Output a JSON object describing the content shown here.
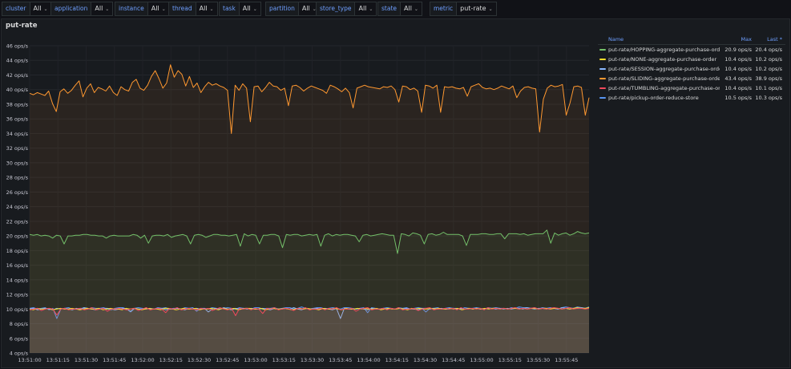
{
  "variables": [
    {
      "name": "cluster",
      "value": "All"
    },
    {
      "name": "application",
      "value": "All"
    },
    {
      "name": "instance",
      "value": "All"
    },
    {
      "name": "thread",
      "value": "All"
    },
    {
      "name": "task",
      "value": "All"
    },
    {
      "name": "partition",
      "value": "All"
    },
    {
      "name": "store_type",
      "value": "All"
    },
    {
      "name": "state",
      "value": "All"
    },
    {
      "name": "metric",
      "value": "put-rate"
    }
  ],
  "panel": {
    "title": "put-rate"
  },
  "legend": {
    "headers": {
      "name": "Name",
      "max": "Max",
      "last": "Last *"
    },
    "rows": [
      {
        "name": "put-rate/HOPPING-aggregate-purchase-order",
        "max": "20.9 ops/s",
        "last": "20.4 ops/s",
        "color": "#73bf69"
      },
      {
        "name": "put-rate/NONE-aggregate-purchase-order",
        "max": "10.4 ops/s",
        "last": "10.2 ops/s",
        "color": "#fade2a"
      },
      {
        "name": "put-rate/SESSION-aggregate-purchase-order",
        "max": "10.4 ops/s",
        "last": "10.2 ops/s",
        "color": "#8ab8ff"
      },
      {
        "name": "put-rate/SLIDING-aggregate-purchase-order",
        "max": "43.4 ops/s",
        "last": "38.9 ops/s",
        "color": "#ff9830"
      },
      {
        "name": "put-rate/TUMBLING-aggregate-purchase-order",
        "max": "10.4 ops/s",
        "last": "10.1 ops/s",
        "color": "#f2495c"
      },
      {
        "name": "put-rate/pickup-order-reduce-store",
        "max": "10.5 ops/s",
        "last": "10.3 ops/s",
        "color": "#5794f2"
      }
    ]
  },
  "chart_data": {
    "type": "line",
    "ylim": [
      4,
      46
    ],
    "y_ticks": [
      "4 ops/s",
      "6 ops/s",
      "8 ops/s",
      "10 ops/s",
      "12 ops/s",
      "14 ops/s",
      "16 ops/s",
      "18 ops/s",
      "20 ops/s",
      "22 ops/s",
      "24 ops/s",
      "26 ops/s",
      "28 ops/s",
      "30 ops/s",
      "32 ops/s",
      "34 ops/s",
      "36 ops/s",
      "38 ops/s",
      "40 ops/s",
      "42 ops/s",
      "44 ops/s",
      "46 ops/s"
    ],
    "x_ticks": [
      "13:51:00",
      "13:51:15",
      "13:51:30",
      "13:51:45",
      "13:52:00",
      "13:52:15",
      "13:52:30",
      "13:52:45",
      "13:53:00",
      "13:53:15",
      "13:53:30",
      "13:53:45",
      "13:54:00",
      "13:54:15",
      "13:54:30",
      "13:54:45",
      "13:55:00",
      "13:55:15",
      "13:55:30",
      "13:55:45"
    ],
    "x_start_seconds": 0,
    "x_end_seconds": 297,
    "series": [
      {
        "name": "put-rate/SLIDING-aggregate-purchase-order",
        "color": "#ff9830",
        "values": [
          39.5,
          39.3,
          39.6,
          39.4,
          39.2,
          39.8,
          38.1,
          37,
          39.7,
          40.1,
          39.5,
          39.9,
          40.6,
          41.2,
          39,
          40.2,
          40.8,
          39.6,
          40.3,
          40.1,
          39.8,
          40.5,
          39.6,
          39.2,
          40.4,
          40,
          39.8,
          41,
          41.4,
          40.2,
          39.9,
          40.6,
          41.8,
          42.6,
          41.5,
          40.2,
          40.9,
          43.4,
          41.7,
          42.6,
          42.1,
          40.5,
          41.8,
          40.3,
          40.9,
          39.6,
          40.4,
          41,
          40.6,
          40.8,
          40.5,
          40.3,
          39.9,
          34,
          40.6,
          39.9,
          40.8,
          40.2,
          35.6,
          40.4,
          40.5,
          39.7,
          40.3,
          41,
          40.5,
          40.4,
          39.9,
          40.2,
          37.8,
          40.5,
          40.6,
          40.3,
          39.8,
          40.2,
          40.5,
          40.3,
          40.1,
          39.9,
          39.5,
          40.6,
          40.4,
          40.1,
          39.7,
          40.2,
          39.6,
          37.5,
          40.2,
          40.4,
          40.6,
          40.4,
          40.3,
          40.2,
          40.1,
          40.4,
          40.3,
          40.5,
          40,
          38.3,
          40.5,
          40.4,
          40,
          40.2,
          39.8,
          36.9,
          40.6,
          40.5,
          40.2,
          40.6,
          36.9,
          40.4,
          40.3,
          40.4,
          40.2,
          40.1,
          40.3,
          39.1,
          40.4,
          40.6,
          40.8,
          40.3,
          40.1,
          40.2,
          40,
          40.2,
          40.5,
          40.3,
          40.1,
          40.5,
          38.9,
          39.8,
          40.3,
          40.4,
          40.2,
          40.1,
          34.2,
          38.7,
          40.2,
          40.6,
          40.4,
          40.5,
          40.7,
          36.5,
          38.2,
          40.4,
          40.5,
          40.3,
          36.5,
          38.9
        ]
      },
      {
        "name": "put-rate/HOPPING-aggregate-purchase-order",
        "color": "#73bf69",
        "values": [
          20.2,
          20.1,
          20.2,
          20,
          20.1,
          20,
          19.7,
          20.1,
          20,
          18.9,
          20,
          20,
          20.1,
          20.1,
          20.2,
          20.2,
          20.1,
          20.1,
          20,
          20,
          19.7,
          20,
          20.1,
          20,
          20,
          20,
          20,
          20.2,
          20.1,
          19.7,
          20.1,
          19,
          20,
          20.1,
          20.1,
          20,
          20.2,
          19.8,
          20,
          20.1,
          20.2,
          20,
          18.9,
          20.1,
          20.2,
          20.1,
          19.8,
          20,
          20.2,
          20.2,
          20.1,
          20.1,
          20,
          20.1,
          20.2,
          18.6,
          20.3,
          20,
          20.2,
          20.1,
          18.9,
          20.1,
          20.1,
          20.2,
          20.2,
          20,
          18.4,
          20.2,
          20.1,
          20.2,
          20.2,
          20,
          20.1,
          20.2,
          20.1,
          20.2,
          18.6,
          20.1,
          20.3,
          20,
          20.2,
          20.1,
          20.2,
          20.2,
          20.1,
          20,
          19.2,
          20.1,
          20.2,
          20,
          20.1,
          20.2,
          20.3,
          20.2,
          20.1,
          20.1,
          17.6,
          20.3,
          20.2,
          20,
          20.4,
          20.3,
          20.1,
          18.9,
          20.2,
          20.3,
          20.1,
          20.2,
          20.5,
          20.2,
          20.2,
          20.2,
          20.2,
          20,
          18.7,
          20.2,
          20.2,
          20.2,
          20.3,
          20.3,
          20.2,
          20.2,
          20.3,
          20.3,
          19.6,
          20.3,
          20.3,
          20.3,
          20.2,
          20.3,
          20.1,
          20.2,
          20.3,
          20.3,
          20.3,
          20.8,
          19,
          20.4,
          20.1,
          20.3,
          20.4,
          20.1,
          20.3,
          20.6,
          20.4,
          20.3,
          20.4
        ]
      },
      {
        "name": "put-rate/pickup-order-reduce-store",
        "color": "#5794f2",
        "values": [
          10.1,
          10.2,
          10,
          10.1,
          10.2,
          9.9,
          10.1,
          8.7,
          10,
          10.1,
          10.2,
          10,
          10,
          10.1,
          10.1,
          10,
          10.2,
          10.1,
          10.1,
          10.2,
          10,
          9.9,
          10.1,
          10.2,
          10.2,
          10,
          9.6,
          10.1,
          10.2,
          10.1,
          10,
          10.1,
          10,
          10.2,
          10.1,
          10.2,
          10,
          10.1,
          10.1,
          10,
          10.2,
          10.1,
          10.2,
          9.7,
          10.1,
          10.1,
          10,
          10.2,
          10.1,
          10,
          10.1,
          10.2,
          10.1,
          10,
          10.2,
          10.1,
          10.1,
          10,
          10.2,
          10.2,
          10,
          10.1,
          10.1,
          10.2,
          10,
          10.1,
          10.2,
          10.2,
          10,
          10.1,
          10.3,
          10.1,
          10,
          10.1,
          10.2,
          10.2,
          10,
          10.1,
          10.2,
          10.1,
          10,
          10.2,
          10.2,
          10.1,
          10,
          10.1,
          10.2,
          9.5,
          10.2,
          10.1,
          10,
          10.1,
          10.2,
          10.1,
          10,
          10.2,
          10.1,
          10.2,
          10,
          10.1,
          10.2,
          10.1,
          9.6,
          10.1,
          10.1,
          10.2,
          10,
          10.1,
          10.2,
          10.1,
          10.1,
          10,
          10.2,
          10.1,
          10.1,
          10.2,
          10.1,
          10,
          10.2,
          10.1,
          10.2,
          10.1,
          10.1,
          10,
          10.2,
          10.1,
          10.3,
          10.2,
          10.2,
          10.1,
          10.2,
          10,
          10.2,
          10.1,
          10.2,
          10.1,
          10,
          10.2,
          10.3,
          10.2,
          10.1,
          10.3,
          10.2,
          10.1,
          10.3
        ]
      },
      {
        "name": "put-rate/SESSION-aggregate-purchase-order",
        "color": "#8ab8ff",
        "values": [
          10,
          10.1,
          9.9,
          10,
          10.1,
          10,
          9.9,
          10.1,
          10,
          10.1,
          10,
          9.9,
          10.1,
          10,
          10.2,
          10.1,
          10,
          9.9,
          10,
          10.1,
          10.1,
          10,
          9.9,
          10,
          10.1,
          10,
          9.7,
          10.1,
          10,
          10,
          10.1,
          10,
          10,
          10.1,
          10.1,
          9.9,
          10,
          10,
          10.1,
          10,
          9.9,
          10.1,
          10,
          10.1,
          10,
          10.1,
          9.6,
          10,
          10.1,
          10,
          10.2,
          10,
          9.9,
          10.1,
          10,
          10.1,
          10,
          10.1,
          10,
          10,
          10.1,
          10,
          9.9,
          10.1,
          10,
          10,
          10.1,
          10,
          10.2,
          10,
          9.9,
          10.1,
          10,
          10,
          10.1,
          10,
          10.1,
          10,
          9.9,
          10.1,
          8.7,
          10.1,
          10,
          10,
          10,
          10.1,
          10,
          9.9,
          10.1,
          10,
          10,
          10.1,
          10,
          10.1,
          10,
          10.1,
          10,
          10.1,
          10,
          10,
          9.9,
          10.1,
          10.1,
          10,
          10.1,
          10,
          10.1,
          10,
          10,
          10.1,
          10,
          10.1,
          10,
          10.1,
          10,
          10.1,
          10,
          10,
          10.1,
          10.1,
          10,
          10.1,
          10,
          10.1,
          10,
          10.1,
          10.1,
          10,
          10.2,
          10.1,
          10,
          10.1,
          10.1,
          10,
          10.1,
          10.1,
          10,
          10.2,
          10.1,
          10,
          10.1,
          10.1,
          10.2,
          10.1,
          10.2
        ]
      },
      {
        "name": "put-rate/NONE-aggregate-purchase-order",
        "color": "#fade2a",
        "values": [
          10,
          9.9,
          10.1,
          10,
          10,
          10.1,
          9.9,
          10,
          10.1,
          10,
          10,
          10.1,
          10,
          9.9,
          10,
          10.1,
          10,
          10,
          10.1,
          9.9,
          10,
          10.1,
          10,
          10,
          9.9,
          10.1,
          10,
          10.1,
          10,
          9.9,
          10,
          10.1,
          10,
          10,
          9.9,
          10.1,
          10.1,
          10,
          9.9,
          10,
          10.1,
          10,
          10,
          10.1,
          9.9,
          10,
          10,
          10.1,
          10,
          9.9,
          10.1,
          10,
          10,
          10.1,
          9.9,
          10,
          10.1,
          10.1,
          10,
          10,
          10.1,
          9.9,
          10,
          10.1,
          10,
          10,
          10.1,
          10,
          9.9,
          10,
          10.1,
          10,
          10.1,
          10,
          10,
          9.9,
          10.1,
          10,
          10,
          10.1,
          10,
          9.9,
          10.1,
          10,
          10,
          10.1,
          10,
          10.1,
          10,
          10,
          10.1,
          9.9,
          10,
          10.1,
          10,
          10,
          10.1,
          10,
          9.9,
          10.1,
          10,
          10.1,
          10,
          10,
          10.1,
          10,
          10.1,
          10,
          10,
          10.1,
          10,
          10.1,
          9.9,
          10,
          10.1,
          10,
          10.1,
          10,
          10.1,
          10,
          10.1,
          10.1,
          10,
          10.1,
          10,
          10.1,
          10.1,
          10,
          10.1,
          10,
          10.1,
          10.1,
          10,
          10.1,
          10.1,
          10,
          10.1,
          10.1,
          10,
          10.1,
          10,
          10.1,
          10.2,
          10.1,
          10.1,
          10.2
        ]
      },
      {
        "name": "put-rate/TUMBLING-aggregate-purchase-order",
        "color": "#f2495c",
        "values": [
          9.9,
          10,
          10.1,
          9.8,
          10,
          10.1,
          10,
          9.2,
          10,
          10.1,
          9.9,
          10,
          10,
          10.1,
          9.9,
          10,
          10.2,
          9.9,
          10,
          10.1,
          9.7,
          10,
          10,
          10.1,
          10,
          9.9,
          10,
          10.1,
          9.8,
          10,
          10.2,
          9.9,
          10,
          10.1,
          10,
          9.5,
          10.1,
          10,
          10.2,
          9.9,
          10,
          10.1,
          10,
          9.9,
          10.1,
          10,
          10.1,
          9.8,
          10,
          10.2,
          10,
          9.9,
          10.1,
          9.1,
          10.1,
          10,
          10.1,
          9.9,
          10.1,
          10,
          9.4,
          10.1,
          10,
          10.2,
          9.9,
          10,
          10.1,
          10,
          9.8,
          10.1,
          10,
          10.2,
          9.9,
          10,
          10,
          10.1,
          9.9,
          10.1,
          10,
          10.2,
          9.9,
          10,
          10,
          10.1,
          9.7,
          10,
          10.1,
          10.2,
          9.9,
          10,
          10,
          10.1,
          9.9,
          10.1,
          10,
          10.2,
          9.9,
          10,
          10,
          10.1,
          9.8,
          10,
          10.1,
          10.2,
          9.9,
          10,
          10,
          10.1,
          10,
          10.1,
          9.9,
          10.2,
          10,
          10,
          10.1,
          10,
          10.1,
          9.9,
          10.2,
          10,
          10.1,
          10,
          10.1,
          10,
          10.1,
          10.2,
          10,
          10.1,
          10,
          10.1,
          10.2,
          10,
          10.1,
          10,
          10.1,
          10.2,
          10.1,
          10,
          10.1,
          10.2,
          10,
          10.1,
          10.1,
          10,
          10.1
        ]
      }
    ]
  }
}
